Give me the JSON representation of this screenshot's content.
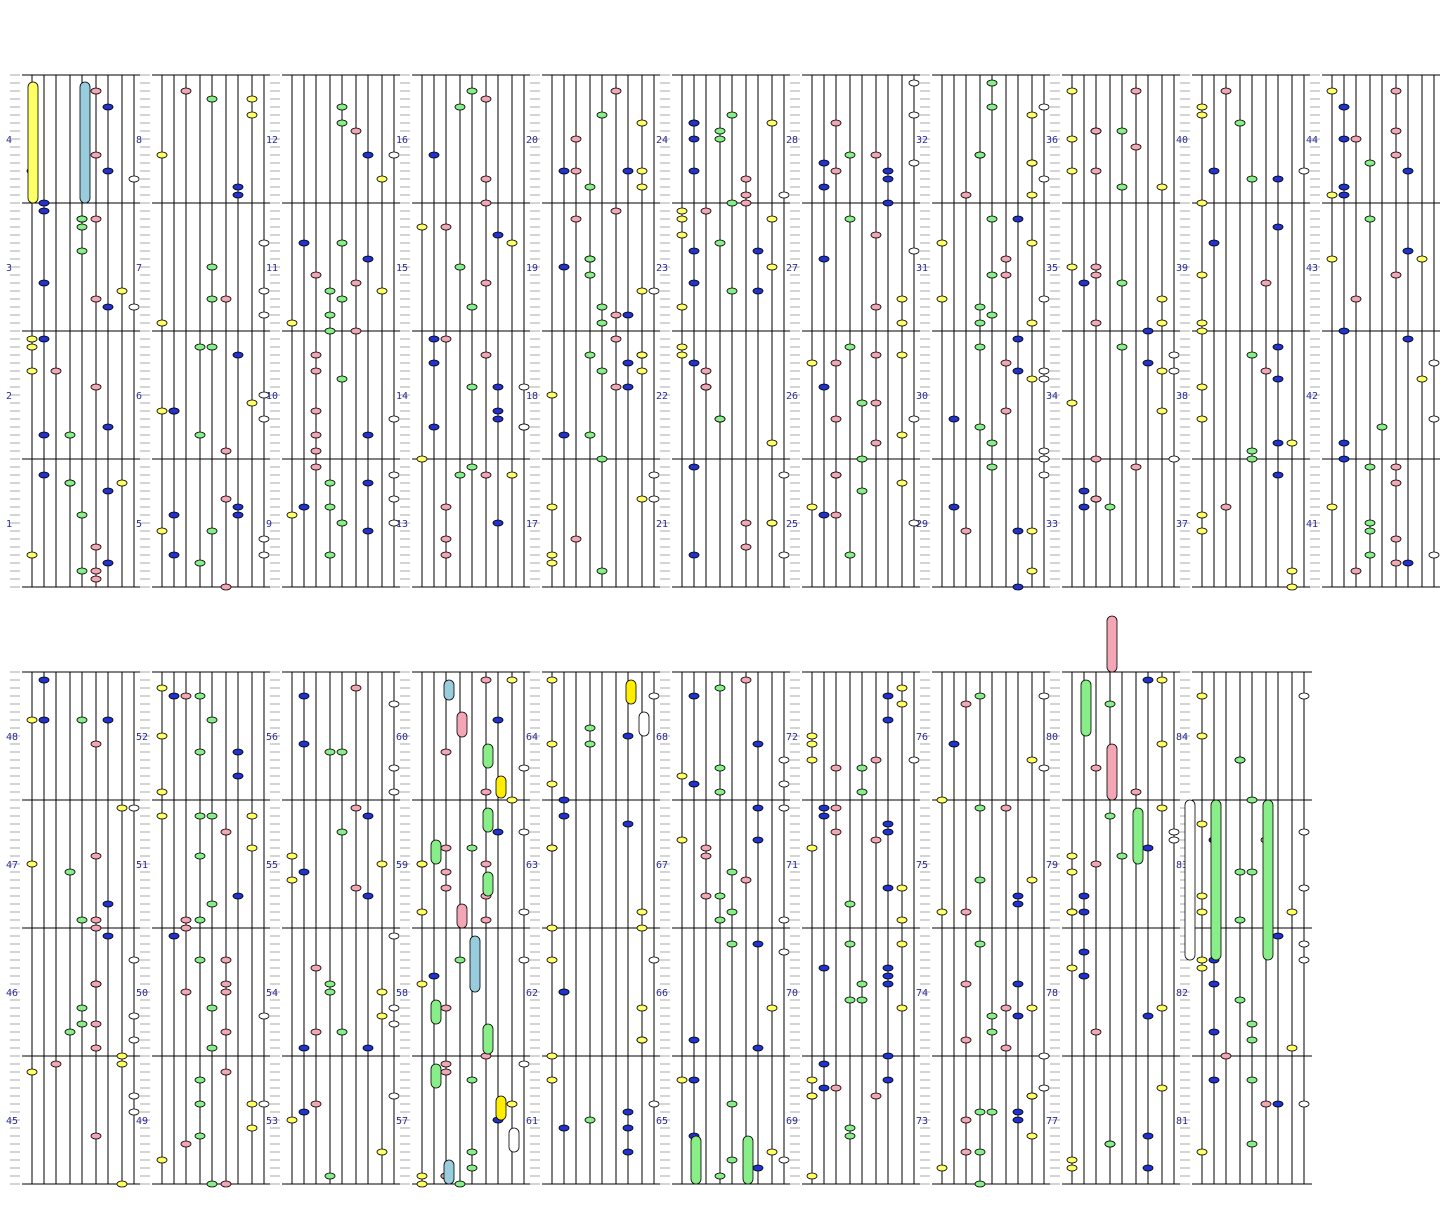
{
  "palette": {
    "yellow": "#ffff66",
    "blue": "#2233cc",
    "pink": "#f4a6b4",
    "green": "#88ee88",
    "white": "#ffffff",
    "lightblue": "#99ccdd",
    "solid_yellow": "#ffee00",
    "line": "#000000",
    "tick": "#aaaaaa",
    "label": "#2a2a9a"
  },
  "rows": [
    {
      "blocks": [
        {
          "measures": [
            "1",
            "2",
            "3",
            "4"
          ]
        },
        {
          "measures": [
            "5",
            "6",
            "7",
            "8"
          ]
        },
        {
          "measures": [
            "9",
            "10",
            "11",
            "12"
          ]
        },
        {
          "measures": [
            "13",
            "14",
            "15",
            "16"
          ]
        },
        {
          "measures": [
            "17",
            "18",
            "19",
            "20"
          ]
        },
        {
          "measures": [
            "21",
            "22",
            "23",
            "24"
          ]
        },
        {
          "measures": [
            "25",
            "26",
            "27",
            "28"
          ]
        },
        {
          "measures": [
            "29",
            "30",
            "31",
            "32"
          ]
        },
        {
          "measures": [
            "33",
            "34",
            "35",
            "36"
          ]
        },
        {
          "measures": [
            "37",
            "38",
            "39",
            "40"
          ]
        },
        {
          "measures": [
            "41",
            "42",
            "43",
            "44"
          ]
        }
      ]
    },
    {
      "blocks": [
        {
          "measures": [
            "45",
            "46",
            "47",
            "48"
          ]
        },
        {
          "measures": [
            "49",
            "50",
            "51",
            "52"
          ]
        },
        {
          "measures": [
            "53",
            "54",
            "55",
            "56"
          ]
        },
        {
          "measures": [
            "57",
            "58",
            "59",
            "60"
          ]
        },
        {
          "measures": [
            "61",
            "62",
            "63",
            "64"
          ]
        },
        {
          "measures": [
            "65",
            "66",
            "67",
            "68"
          ]
        },
        {
          "measures": [
            "69",
            "70",
            "71",
            "72"
          ]
        },
        {
          "measures": [
            "73",
            "74",
            "75",
            "76"
          ]
        },
        {
          "measures": [
            "77",
            "78",
            "79",
            "80"
          ]
        },
        {
          "measures": [
            "81",
            "82",
            "83",
            "84"
          ]
        }
      ]
    }
  ]
}
